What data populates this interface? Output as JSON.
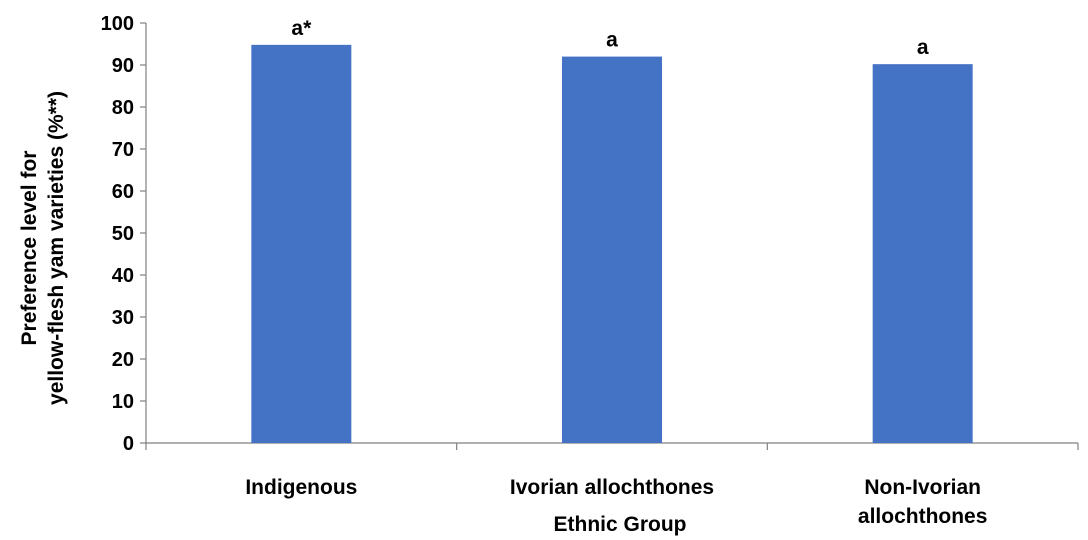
{
  "chart_data": {
    "type": "bar",
    "categories": [
      [
        "Indigenous"
      ],
      [
        "Ivorian allochthones"
      ],
      [
        "Non-Ivorian",
        "allochthones"
      ]
    ],
    "values": [
      94.8,
      92.0,
      90.2
    ],
    "data_labels": [
      "a*",
      "a",
      "a"
    ],
    "xlabel": "Ethnic Group",
    "ylabel": [
      "Preference level for",
      "yellow-flesh yam varieties (%**)"
    ],
    "ylim": [
      0,
      100
    ],
    "yticks": [
      0,
      10,
      20,
      30,
      40,
      50,
      60,
      70,
      80,
      90,
      100
    ],
    "grid": false,
    "bar_color": "#4472C4"
  }
}
